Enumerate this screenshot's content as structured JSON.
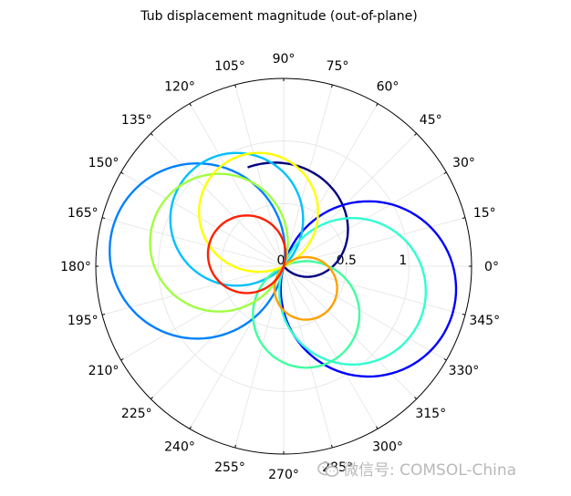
{
  "chart_data": {
    "type": "polar-line",
    "title": "Tub displacement magnitude (out-of-plane)",
    "angle_ticks": [
      "0°",
      "15°",
      "30°",
      "45°",
      "60°",
      "75°",
      "90°",
      "105°",
      "120°",
      "135°",
      "150°",
      "165°",
      "180°",
      "195°",
      "210°",
      "225°",
      "240°",
      "255°",
      "270°",
      "285°",
      "300°",
      "315°",
      "330°",
      "345°"
    ],
    "angle_tick_values": [
      0,
      15,
      30,
      45,
      60,
      75,
      90,
      105,
      120,
      135,
      150,
      165,
      180,
      195,
      210,
      225,
      240,
      255,
      270,
      285,
      300,
      315,
      330,
      345
    ],
    "radial_ticks": [
      "0",
      "0.5",
      "1"
    ],
    "radial_tick_values": [
      0,
      0.5,
      1
    ],
    "rlim": [
      0,
      1.5
    ],
    "grid": true,
    "series": [
      {
        "color": "#000080",
        "shape": "spiral",
        "start_angle": 110,
        "start_r": 0.84,
        "end_angle": 180,
        "end_r": 0.0
      },
      {
        "color": "#0000ff",
        "shape": "circle",
        "dir_deg": -15,
        "diameter": 1.4
      },
      {
        "color": "#0080ff",
        "shape": "circle",
        "dir_deg": 170,
        "diameter": 1.4
      },
      {
        "color": "#00c0ff",
        "shape": "circle",
        "dir_deg": 135,
        "diameter": 1.06
      },
      {
        "color": "#30ffd0",
        "shape": "circle",
        "dir_deg": -20,
        "diameter": 1.17
      },
      {
        "color": "#40ffa0",
        "shape": "circle",
        "dir_deg": -65,
        "diameter": 0.85
      },
      {
        "color": "#a0ff40",
        "shape": "circle",
        "dir_deg": 160,
        "diameter": 1.1
      },
      {
        "color": "#ffff00",
        "shape": "circle",
        "dir_deg": 115,
        "diameter": 0.95
      },
      {
        "color": "#ffa000",
        "shape": "circle",
        "dir_deg": -45,
        "diameter": 0.5
      },
      {
        "color": "#ff2000",
        "shape": "circle",
        "dir_deg": 162,
        "diameter": 0.62
      }
    ]
  },
  "watermark": {
    "text": "微信号: COMSOL-China"
  }
}
